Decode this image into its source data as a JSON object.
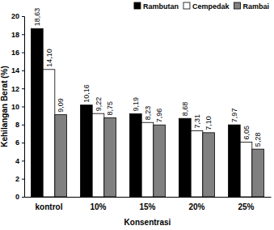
{
  "chart_data": {
    "type": "bar",
    "x_label": "Konsentrasi",
    "y_label": "Kehilangan Berat (%)",
    "categories": [
      "kontrol",
      "10%",
      "15%",
      "20%",
      "25%"
    ],
    "series": [
      {
        "name": "Rambutan",
        "color": "#000000",
        "values": [
          18.63,
          10.16,
          9.19,
          8.68,
          7.97
        ],
        "value_labels": [
          "18,63",
          "10,16",
          "9,19",
          "8,68",
          "7,97"
        ]
      },
      {
        "name": "Cempedak",
        "color": "#ffffff",
        "values": [
          14.1,
          9.22,
          8.23,
          7.31,
          6.05
        ],
        "value_labels": [
          "14,10",
          "9,22",
          "8,23",
          "7,31",
          "6,05"
        ]
      },
      {
        "name": "Rambai",
        "color": "#808080",
        "values": [
          9.09,
          8.75,
          7.96,
          7.1,
          5.28
        ],
        "value_labels": [
          "9,09",
          "8,75",
          "7,96",
          "7,10",
          "5,28"
        ]
      }
    ],
    "ylim": [
      0,
      20
    ],
    "yticks": [
      0,
      2,
      4,
      6,
      8,
      10,
      12,
      14,
      16,
      18,
      20
    ],
    "grid": false,
    "legend": "top-right",
    "data_labels": true
  }
}
